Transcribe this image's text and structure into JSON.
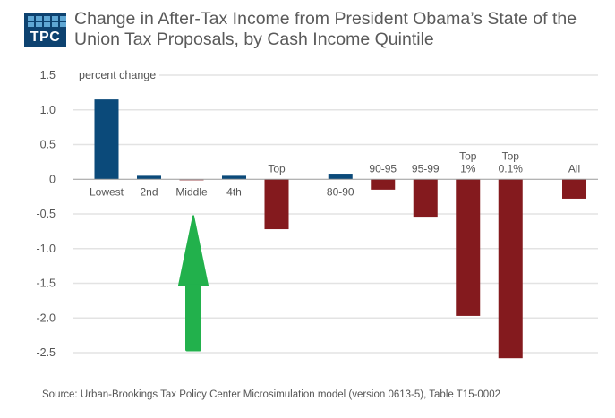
{
  "header": {
    "logo_text": "TPC",
    "title_line1": "Change in After-Tax Income  from President Obama’s State of the",
    "title_line2": "Union Tax Proposals, by Cash Income Quintile"
  },
  "source": "Source: Urban-Brookings Tax Policy Center Microsimulation model (version 0613-5), Table T15-0002",
  "colors": {
    "positive": "#0b4a7a",
    "negative": "#841a1e",
    "arrow": "#22b14c",
    "grid": "#e3e3e3",
    "axis": "#9a9a9a"
  },
  "annotation": {
    "type": "arrow-up",
    "points_to": "Middle",
    "color": "#22b14c"
  },
  "chart_data": {
    "type": "bar",
    "title": "Change in After-Tax Income from President Obama’s State of the Union Tax Proposals, by Cash Income Quintile",
    "xlabel": "",
    "ylabel": "percent change",
    "ylim": [
      -2.5,
      1.5
    ],
    "yticks": [
      1.5,
      1.0,
      0.5,
      0,
      -0.5,
      -1.0,
      -1.5,
      -2.0,
      -2.5
    ],
    "ytick_labels": [
      "1.5",
      "1.0",
      "0.5",
      "0",
      "-0.5",
      "-1.0",
      "-1.5",
      "-2.0",
      "-2.5"
    ],
    "grid": true,
    "categories": [
      "Lowest",
      "2nd",
      "Middle",
      "4th",
      "Top",
      "80-90",
      "90-95",
      "95-99",
      "Top 1%",
      "Top 0.1%",
      "All"
    ],
    "category_labels": [
      [
        "Lowest"
      ],
      [
        "2nd"
      ],
      [
        "Middle"
      ],
      [
        "4th"
      ],
      [
        "Top"
      ],
      [
        "80-90"
      ],
      [
        "90-95"
      ],
      [
        "95-99"
      ],
      [
        "Top",
        "1%"
      ],
      [
        "Top",
        "0.1%"
      ],
      [
        "All"
      ]
    ],
    "slots": [
      0,
      1,
      2,
      3,
      4,
      5.5,
      6.5,
      7.5,
      8.5,
      9.5,
      11
    ],
    "values": [
      1.15,
      0.05,
      -0.01,
      0.05,
      -0.72,
      0.08,
      -0.15,
      -0.54,
      -1.97,
      -2.58,
      -0.28
    ]
  }
}
